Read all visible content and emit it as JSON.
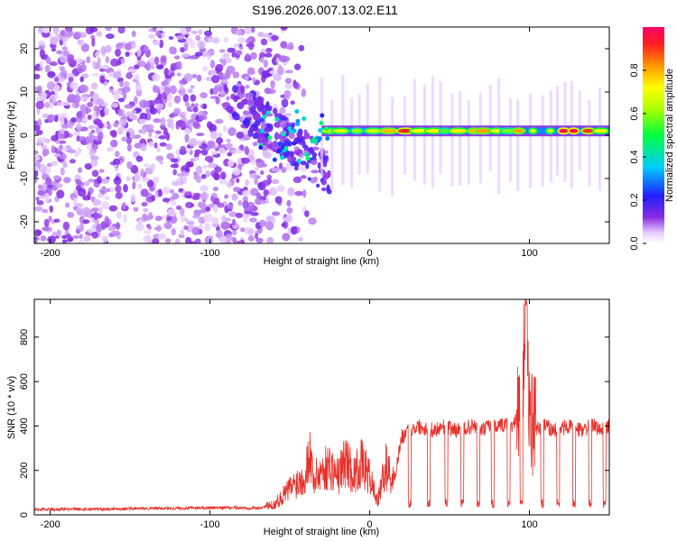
{
  "title": "S196.2026.007.13.02.E11",
  "chart_data": [
    {
      "type": "heatmap",
      "name": "spectrogram",
      "xlabel": "Height of straight line (km)",
      "ylabel": "Frequency (Hz)",
      "xlim": [
        -210,
        150
      ],
      "ylim": [
        -25,
        25
      ],
      "xticks": [
        -200,
        -100,
        0,
        100
      ],
      "yticks": [
        -20,
        -10,
        0,
        10,
        20
      ],
      "colorbar": {
        "label": "Normalized spectral amplitude",
        "range": [
          0,
          1
        ],
        "ticks": [
          0.0,
          0.2,
          0.4,
          0.6,
          0.8
        ],
        "tick_labels": [
          "0.0",
          "0.2",
          "0.4",
          "0.6",
          "0.8"
        ]
      },
      "description_of_content": "Noisy scattered low-amplitude energy for heights below about -70 km; above about -30 km a strong narrow band centered near 0 Hz (about 1 Hz) with amplitude peaks up to 1.0."
    },
    {
      "type": "line",
      "name": "snr",
      "xlabel": "Height of straight line (km)",
      "ylabel": "SNR (10 * v/v)",
      "xlim": [
        -210,
        150
      ],
      "ylim": [
        0,
        970
      ],
      "xticks": [
        -200,
        -100,
        0,
        100
      ],
      "yticks": [
        0,
        200,
        400,
        600,
        800
      ],
      "color": "#e8302a",
      "series": [
        {
          "name": "SNR",
          "x": [
            -210,
            -180,
            -150,
            -120,
            -90,
            -70,
            -60,
            -55,
            -50,
            -45,
            -40,
            -38,
            -35,
            -30,
            -25,
            -20,
            -15,
            -10,
            -5,
            0,
            5,
            10,
            15,
            20,
            25,
            30,
            35,
            40,
            45,
            50,
            55,
            60,
            65,
            70,
            75,
            80,
            85,
            90,
            95,
            98,
            100,
            102,
            105,
            110,
            115,
            120,
            125,
            130,
            135,
            140,
            145,
            150
          ],
          "values": [
            25,
            25,
            28,
            30,
            32,
            30,
            45,
            80,
            120,
            150,
            180,
            300,
            160,
            200,
            220,
            170,
            250,
            180,
            230,
            170,
            60,
            220,
            150,
            350,
            380,
            400,
            390,
            380,
            400,
            390,
            380,
            390,
            400,
            380,
            400,
            390,
            410,
            400,
            500,
            960,
            450,
            380,
            390,
            400,
            380,
            390,
            400,
            380,
            390,
            400,
            380,
            400
          ]
        }
      ]
    }
  ]
}
